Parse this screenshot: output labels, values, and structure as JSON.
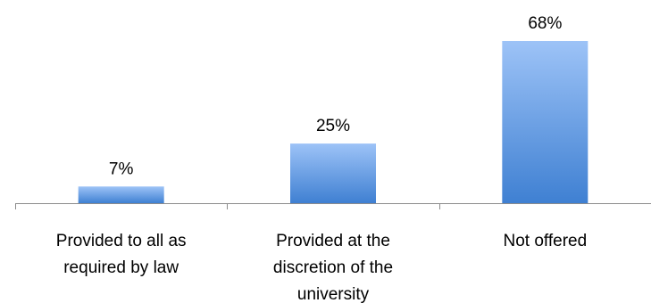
{
  "chart_data": {
    "type": "bar",
    "categories": [
      [
        "Provided to all as",
        "required by law"
      ],
      [
        "Provided at the",
        "discretion of the",
        "university"
      ],
      [
        "Not offered"
      ]
    ],
    "values": [
      7,
      25,
      68
    ],
    "data_labels": [
      "7%",
      "25%",
      "68%"
    ],
    "title": "",
    "xlabel": "",
    "ylabel": "",
    "ylim": [
      0,
      68
    ],
    "grid": false,
    "legend": "none",
    "colors": {
      "bar_top": "#9dc3f7",
      "bar_bottom": "#3f80d2",
      "axis": "#8c8c8c"
    }
  }
}
